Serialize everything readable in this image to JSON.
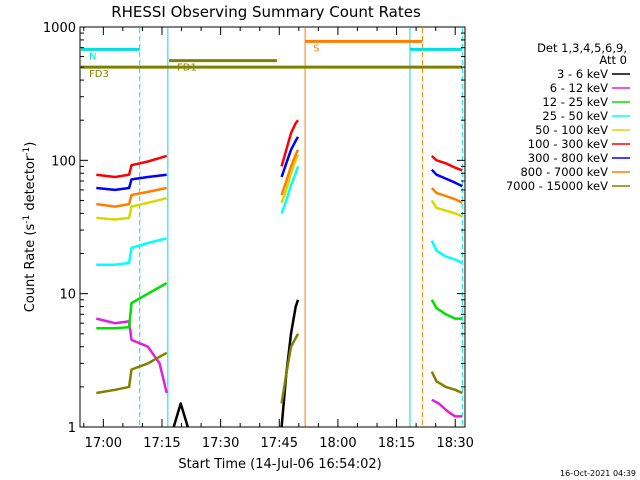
{
  "chart_data": {
    "type": "line",
    "title": "RHESSI Observing Summary Count Rates",
    "xlabel": "Start Time (14-Jul-06 16:54:02)",
    "ylabel_main": "Count Rate (s",
    "ylabel_sup1": "-1",
    "ylabel_mid": " detector",
    "ylabel_sup2": "-1",
    "ylabel_end": ")",
    "y_scale": "log",
    "ylim": [
      1,
      1000
    ],
    "xlim": [
      "16:54:02",
      "18:32:30"
    ],
    "x_ticks": [
      {
        "t": 17.0,
        "label": "17:00"
      },
      {
        "t": 17.25,
        "label": "17:15"
      },
      {
        "t": 17.5,
        "label": "17:30"
      },
      {
        "t": 17.75,
        "label": "17:45"
      },
      {
        "t": 18.0,
        "label": "18:00"
      },
      {
        "t": 18.25,
        "label": "18:15"
      },
      {
        "t": 18.5,
        "label": "18:30"
      }
    ],
    "y_ticks": [
      {
        "v": 1,
        "label": "1"
      },
      {
        "v": 10,
        "label": "10"
      },
      {
        "v": 100,
        "label": "100"
      },
      {
        "v": 1000,
        "label": "1000"
      }
    ],
    "legend_header": [
      "Det 1,3,4,5,6,9,",
      "Att 0"
    ],
    "legend_position": "right",
    "data_gaps": [
      [
        "17:21",
        "17:43"
      ],
      [
        "18:23",
        "18:24"
      ]
    ],
    "series": [
      {
        "name": "3 - 6 keV",
        "color": "#000000",
        "segments": [
          [
            [
              17.3,
              1.0
            ],
            [
              17.33,
              1.5
            ],
            [
              17.36,
              1.0
            ]
          ],
          [
            [
              17.76,
              1.0
            ],
            [
              17.78,
              2.5
            ],
            [
              17.8,
              5.0
            ],
            [
              17.82,
              8.0
            ],
            [
              17.83,
              9.0
            ]
          ]
        ]
      },
      {
        "name": "6 - 12 keV",
        "color": "#e020e0",
        "segments": [
          [
            [
              16.97,
              6.5
            ],
            [
              17.05,
              6.0
            ],
            [
              17.11,
              6.2
            ],
            [
              17.12,
              4.5
            ],
            [
              17.19,
              4.0
            ],
            [
              17.24,
              3.0
            ],
            [
              17.27,
              1.8
            ]
          ],
          [
            [
              18.4,
              1.6
            ],
            [
              18.43,
              1.5
            ],
            [
              18.47,
              1.3
            ],
            [
              18.5,
              1.2
            ],
            [
              18.53,
              1.2
            ]
          ]
        ]
      },
      {
        "name": "12 - 25 keV",
        "color": "#00e000",
        "segments": [
          [
            [
              16.97,
              5.5
            ],
            [
              17.05,
              5.5
            ],
            [
              17.11,
              5.6
            ],
            [
              17.12,
              8.5
            ],
            [
              17.19,
              10.0
            ],
            [
              17.27,
              12.0
            ]
          ],
          [
            [
              18.4,
              9.0
            ],
            [
              18.42,
              7.8
            ],
            [
              18.46,
              7.0
            ],
            [
              18.5,
              6.5
            ],
            [
              18.53,
              6.5
            ]
          ]
        ]
      },
      {
        "name": "25 - 50 keV",
        "color": "#00ffff",
        "segments": [
          [
            [
              16.97,
              16.5
            ],
            [
              17.05,
              16.5
            ],
            [
              17.11,
              17.0
            ],
            [
              17.12,
              22.0
            ],
            [
              17.19,
              24.0
            ],
            [
              17.27,
              26.0
            ]
          ],
          [
            [
              17.76,
              40.0
            ],
            [
              17.78,
              50.0
            ],
            [
              17.8,
              65.0
            ],
            [
              17.82,
              80.0
            ],
            [
              17.83,
              90.0
            ]
          ],
          [
            [
              18.4,
              25.0
            ],
            [
              18.42,
              21.0
            ],
            [
              18.46,
              19.0
            ],
            [
              18.5,
              18.0
            ],
            [
              18.53,
              17.0
            ]
          ]
        ]
      },
      {
        "name": "50 - 100 keV",
        "color": "#d8d800",
        "segments": [
          [
            [
              16.97,
              37.0
            ],
            [
              17.05,
              36.0
            ],
            [
              17.11,
              37.0
            ],
            [
              17.12,
              45.0
            ],
            [
              17.19,
              48.0
            ],
            [
              17.27,
              52.0
            ]
          ],
          [
            [
              17.76,
              48.0
            ],
            [
              17.78,
              60.0
            ],
            [
              17.8,
              80.0
            ],
            [
              17.82,
              100.0
            ],
            [
              17.83,
              110.0
            ]
          ],
          [
            [
              18.4,
              50.0
            ],
            [
              18.42,
              44.0
            ],
            [
              18.46,
              42.0
            ],
            [
              18.5,
              40.0
            ],
            [
              18.53,
              38.0
            ]
          ]
        ]
      },
      {
        "name": "100 - 300 keV",
        "color": "#ff0000",
        "segments": [
          [
            [
              16.97,
              78.0
            ],
            [
              17.05,
              75.0
            ],
            [
              17.11,
              78.0
            ],
            [
              17.12,
              92.0
            ],
            [
              17.19,
              98.0
            ],
            [
              17.27,
              108.0
            ]
          ],
          [
            [
              17.76,
              90.0
            ],
            [
              17.78,
              120.0
            ],
            [
              17.8,
              160.0
            ],
            [
              17.82,
              190.0
            ],
            [
              17.83,
              200.0
            ]
          ],
          [
            [
              18.4,
              108.0
            ],
            [
              18.42,
              100.0
            ],
            [
              18.46,
              95.0
            ],
            [
              18.5,
              88.0
            ],
            [
              18.53,
              84.0
            ]
          ]
        ]
      },
      {
        "name": "300 - 800 keV",
        "color": "#0000ff",
        "segments": [
          [
            [
              16.97,
              62.0
            ],
            [
              17.05,
              60.0
            ],
            [
              17.11,
              62.0
            ],
            [
              17.12,
              72.0
            ],
            [
              17.19,
              75.0
            ],
            [
              17.27,
              78.0
            ]
          ],
          [
            [
              17.76,
              75.0
            ],
            [
              17.78,
              95.0
            ],
            [
              17.8,
              120.0
            ],
            [
              17.82,
              140.0
            ],
            [
              17.83,
              150.0
            ]
          ],
          [
            [
              18.4,
              85.0
            ],
            [
              18.42,
              78.0
            ],
            [
              18.46,
              73.0
            ],
            [
              18.5,
              68.0
            ],
            [
              18.53,
              64.0
            ]
          ]
        ]
      },
      {
        "name": "800 - 7000 keV",
        "color": "#ff8000",
        "segments": [
          [
            [
              16.97,
              47.0
            ],
            [
              17.05,
              45.0
            ],
            [
              17.11,
              47.0
            ],
            [
              17.12,
              55.0
            ],
            [
              17.19,
              58.0
            ],
            [
              17.27,
              62.0
            ]
          ],
          [
            [
              17.76,
              55.0
            ],
            [
              17.78,
              70.0
            ],
            [
              17.8,
              90.0
            ],
            [
              17.82,
              110.0
            ],
            [
              17.83,
              120.0
            ]
          ],
          [
            [
              18.4,
              62.0
            ],
            [
              18.42,
              57.0
            ],
            [
              18.46,
              54.0
            ],
            [
              18.5,
              51.0
            ],
            [
              18.53,
              48.0
            ]
          ]
        ]
      },
      {
        "name": "7000 - 15000 keV",
        "color": "#808000",
        "segments": [
          [
            [
              16.97,
              1.8
            ],
            [
              17.05,
              1.9
            ],
            [
              17.11,
              2.0
            ],
            [
              17.12,
              2.7
            ],
            [
              17.19,
              3.0
            ],
            [
              17.27,
              3.6
            ]
          ],
          [
            [
              17.76,
              1.5
            ],
            [
              17.78,
              2.5
            ],
            [
              17.8,
              4.0
            ],
            [
              17.83,
              5.0
            ]
          ],
          [
            [
              18.4,
              2.6
            ],
            [
              18.42,
              2.2
            ],
            [
              18.46,
              2.0
            ],
            [
              18.5,
              1.9
            ],
            [
              18.53,
              1.8
            ]
          ]
        ]
      }
    ],
    "annotations": [
      {
        "label": "N",
        "color": "#00e0e0",
        "y": 680,
        "x_range": [
          16.905,
          17.155
        ]
      },
      {
        "label": "",
        "color": "#00e0e0",
        "y": 680,
        "x_range": [
          18.307,
          18.53
        ]
      },
      {
        "label": "FD1",
        "color": "#808000",
        "y": 560,
        "x_range": [
          17.28,
          17.74
        ]
      },
      {
        "label": "FD3",
        "color": "#808000",
        "y": 500,
        "x_range": [
          16.905,
          18.53
        ]
      },
      {
        "label": "S",
        "color": "#ff8000",
        "y": 780,
        "x_range": [
          17.86,
          18.36
        ]
      }
    ],
    "markers": [
      {
        "t": 17.275,
        "color": "#00e0e0",
        "style": "solid"
      },
      {
        "t": 17.155,
        "color": "#00e0e0",
        "style": "dashed"
      },
      {
        "t": 18.307,
        "color": "#00e0e0",
        "style": "solid"
      },
      {
        "t": 18.53,
        "color": "#00e0e0",
        "style": "dashed"
      },
      {
        "t": 17.86,
        "color": "#ff8000",
        "style": "solid"
      },
      {
        "t": 18.36,
        "color": "#ff8000",
        "style": "dashed"
      }
    ]
  },
  "footer": {
    "stamp": "16-Oct-2021 04:39"
  }
}
